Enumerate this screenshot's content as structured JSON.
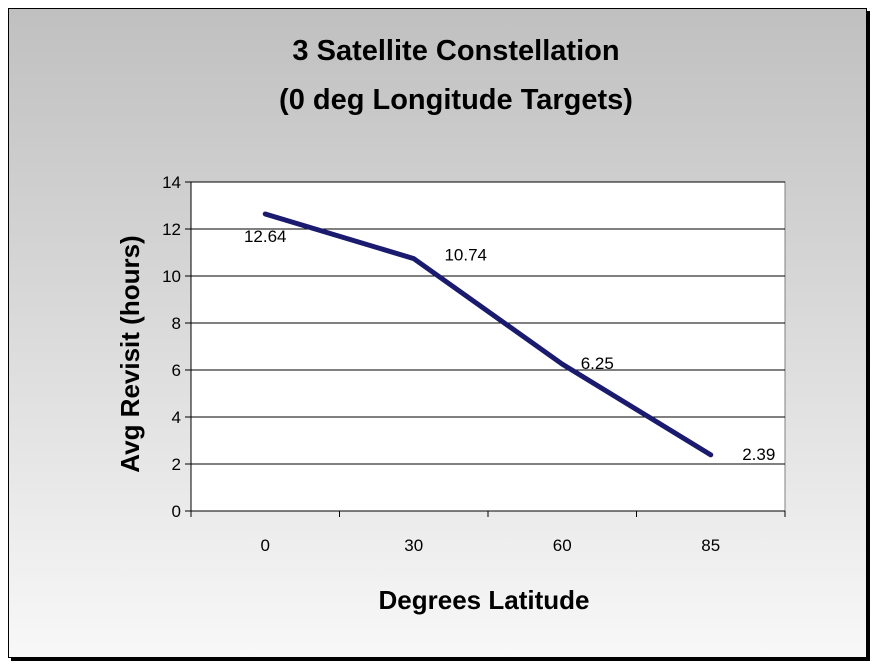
{
  "chart_data": {
    "type": "line",
    "title": [
      "3 Satellite Constellation",
      "(0 deg Longitude Targets)"
    ],
    "xlabel": "Degrees Latitude",
    "ylabel": "Avg Revisit (hours)",
    "categories": [
      "0",
      "30",
      "60",
      "85"
    ],
    "series": [
      {
        "values": [
          12.64,
          10.74,
          6.25,
          2.39
        ],
        "data_labels": [
          "12.64",
          "10.74",
          "6.25",
          "2.39"
        ]
      }
    ],
    "ylim": [
      0,
      14
    ],
    "yticks": [
      0,
      2,
      4,
      6,
      8,
      10,
      12,
      14
    ],
    "grid": true,
    "legend": "none",
    "colors": {
      "line": "#1a1a6e",
      "plot_background": "#ffffff",
      "grid": "#000000"
    }
  }
}
